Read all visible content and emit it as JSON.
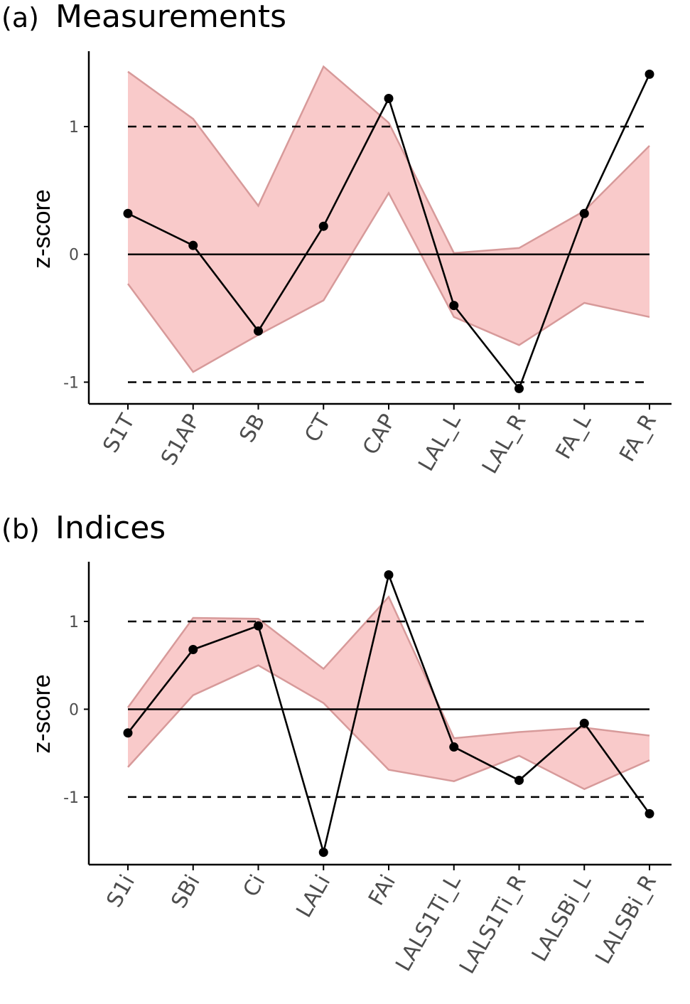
{
  "colors": {
    "band_fill": "#f9caca",
    "band_edge": "#d79a9a",
    "line": "#000000",
    "line_inside_band": "#3d1b1b",
    "axis": "#000000",
    "tick_text": "#4d4d4d"
  },
  "chart_data": [
    {
      "type": "line",
      "panel_tag": "(a)",
      "title": "Measurements",
      "ylabel": "z-score",
      "ylim": [
        -1.17,
        1.59
      ],
      "yticks": [
        -1,
        0,
        1
      ],
      "ytick_labels": [
        "-1",
        "0",
        "1"
      ],
      "hlines": [
        {
          "y": 1,
          "style": "dashed"
        },
        {
          "y": 0,
          "style": "solid"
        },
        {
          "y": -1,
          "style": "dashed"
        }
      ],
      "categories": [
        "S1T",
        "S1AP",
        "SB",
        "CT",
        "CAP",
        "LAL_L",
        "LAL_R",
        "FA_L",
        "FA_R"
      ],
      "values": [
        0.32,
        0.07,
        -0.6,
        0.22,
        1.22,
        -0.4,
        -1.05,
        0.32,
        1.41
      ],
      "band_upper": [
        1.43,
        1.06,
        0.38,
        1.47,
        1.03,
        0.01,
        0.05,
        0.34,
        0.85
      ],
      "band_lower": [
        -0.23,
        -0.92,
        -0.63,
        -0.36,
        0.48,
        -0.49,
        -0.71,
        -0.38,
        -0.49
      ]
    },
    {
      "type": "line",
      "panel_tag": "(b)",
      "title": "Indices",
      "ylabel": "z-score",
      "ylim": [
        -1.77,
        1.68
      ],
      "yticks": [
        -1,
        0,
        1
      ],
      "ytick_labels": [
        "-1",
        "0",
        "1"
      ],
      "hlines": [
        {
          "y": 1,
          "style": "dashed"
        },
        {
          "y": 0,
          "style": "solid"
        },
        {
          "y": -1,
          "style": "dashed"
        }
      ],
      "categories": [
        "S1i",
        "SBi",
        "Ci",
        "LALi",
        "FAi",
        "LALS1Ti_L",
        "LALS1Ti_R",
        "LALSBi_L",
        "LALSBi_R"
      ],
      "values": [
        -0.27,
        0.68,
        0.95,
        -1.63,
        1.53,
        -0.43,
        -0.81,
        -0.16,
        -1.19
      ],
      "band_upper": [
        0.02,
        1.04,
        1.03,
        0.46,
        1.28,
        -0.33,
        -0.26,
        -0.21,
        -0.3
      ],
      "band_lower": [
        -0.66,
        0.16,
        0.5,
        0.07,
        -0.69,
        -0.82,
        -0.53,
        -0.91,
        -0.58
      ]
    }
  ]
}
